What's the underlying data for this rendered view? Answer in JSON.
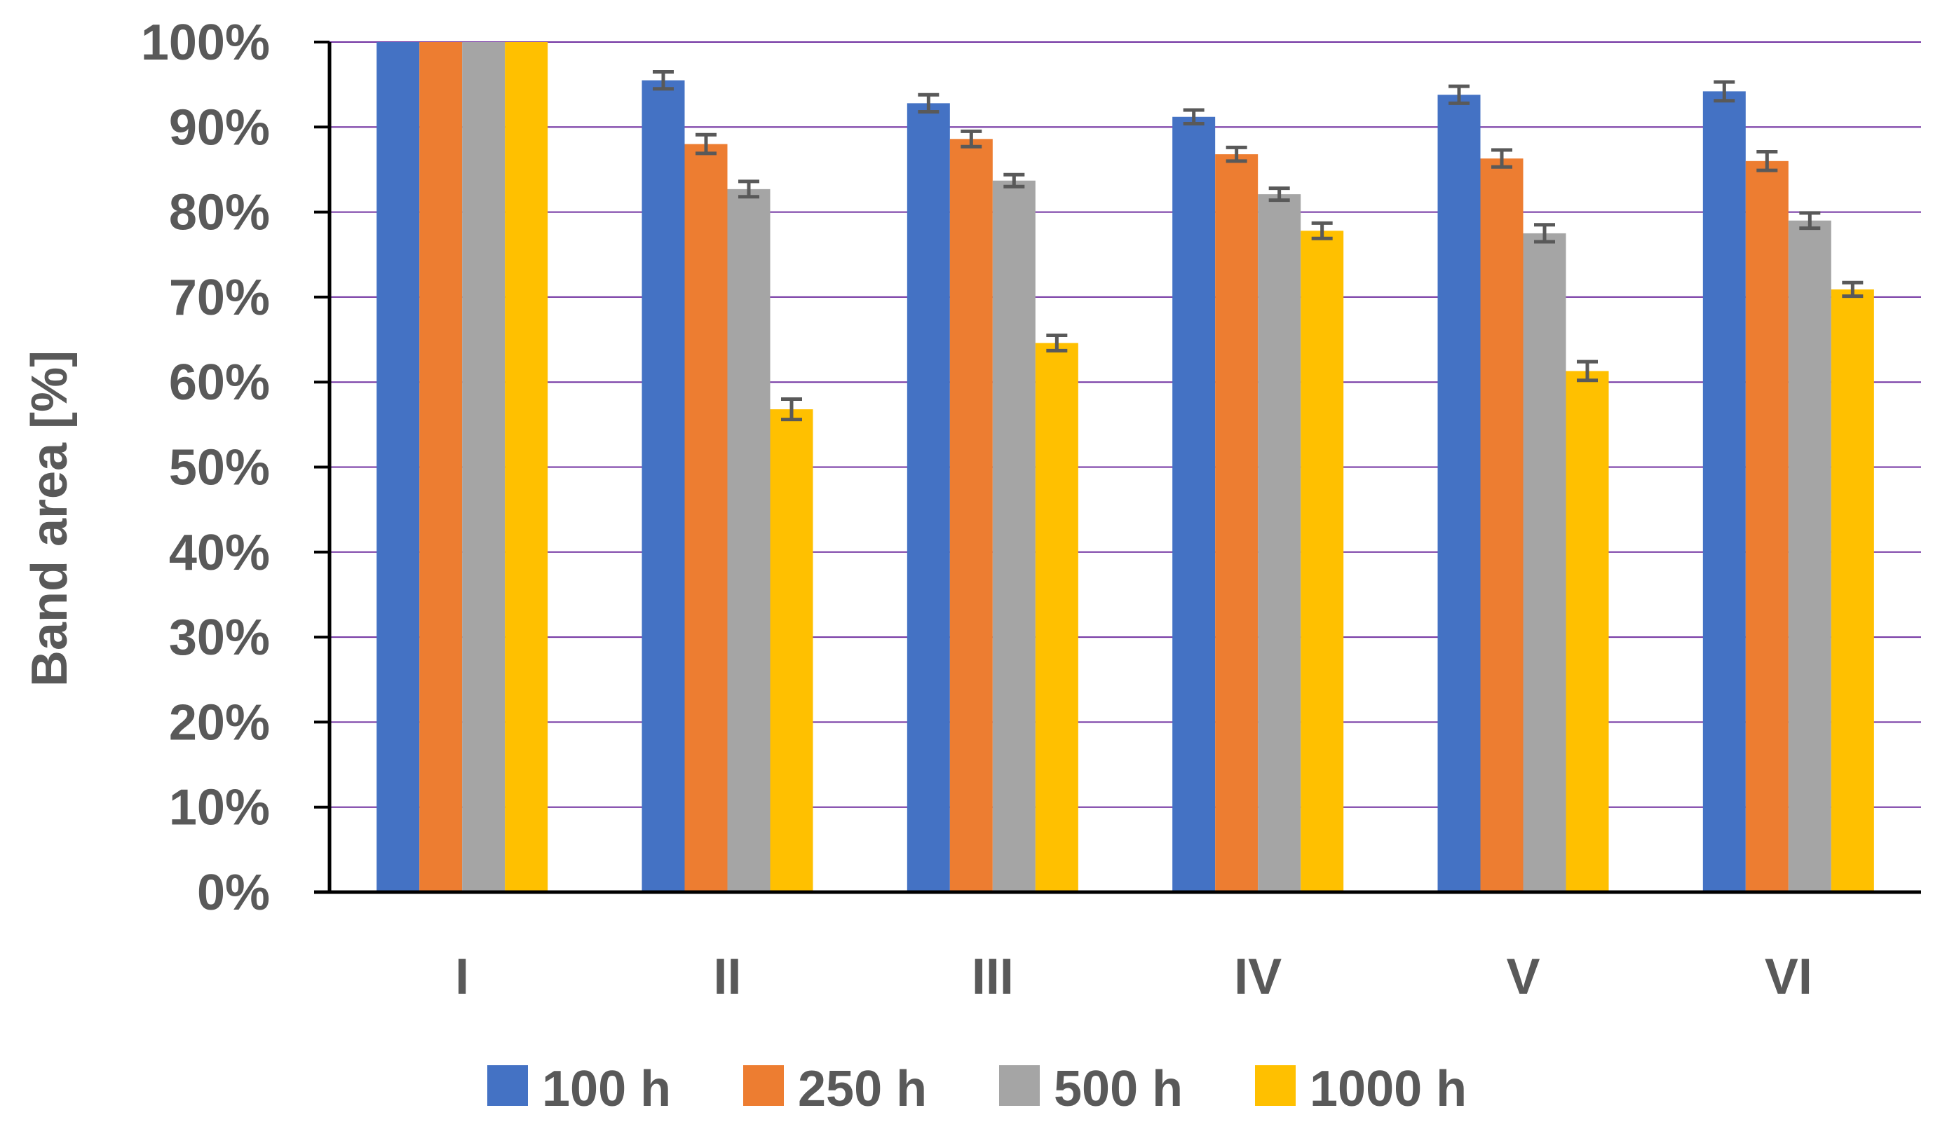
{
  "chart_data": {
    "type": "bar",
    "title": "",
    "xlabel": "",
    "ylabel": "Band area [%]",
    "ylim": [
      0,
      100
    ],
    "y_ticks": [
      "0%",
      "10%",
      "20%",
      "30%",
      "40%",
      "50%",
      "60%",
      "70%",
      "80%",
      "90%",
      "100%"
    ],
    "y_tick_values": [
      0,
      10,
      20,
      30,
      40,
      50,
      60,
      70,
      80,
      90,
      100
    ],
    "grid": true,
    "legend_position": "bottom",
    "categories": [
      "I",
      "II",
      "III",
      "IV",
      "V",
      "VI"
    ],
    "series": [
      {
        "name": "100 h",
        "color": "#4472C4",
        "values": [
          100,
          95.5,
          92.8,
          91.2,
          93.8,
          94.2
        ],
        "errors": [
          0,
          1.0,
          1.0,
          0.8,
          1.0,
          1.1
        ]
      },
      {
        "name": "250 h",
        "color": "#ED7D31",
        "values": [
          100,
          88.0,
          88.6,
          86.8,
          86.3,
          86.0
        ],
        "errors": [
          0,
          1.1,
          0.9,
          0.8,
          1.0,
          1.1
        ]
      },
      {
        "name": "500 h",
        "color": "#A5A5A5",
        "values": [
          100,
          82.7,
          83.7,
          82.1,
          77.5,
          79.0
        ],
        "errors": [
          0,
          0.9,
          0.7,
          0.7,
          1.0,
          0.9
        ]
      },
      {
        "name": "1000 h",
        "color": "#FFC000",
        "values": [
          100,
          56.8,
          64.6,
          77.8,
          61.3,
          70.9
        ],
        "errors": [
          0,
          1.2,
          0.9,
          0.9,
          1.1,
          0.8
        ]
      }
    ],
    "error_bar_color": "#595959",
    "gridline_color": "#7030A0",
    "axis_color": "#000000"
  }
}
